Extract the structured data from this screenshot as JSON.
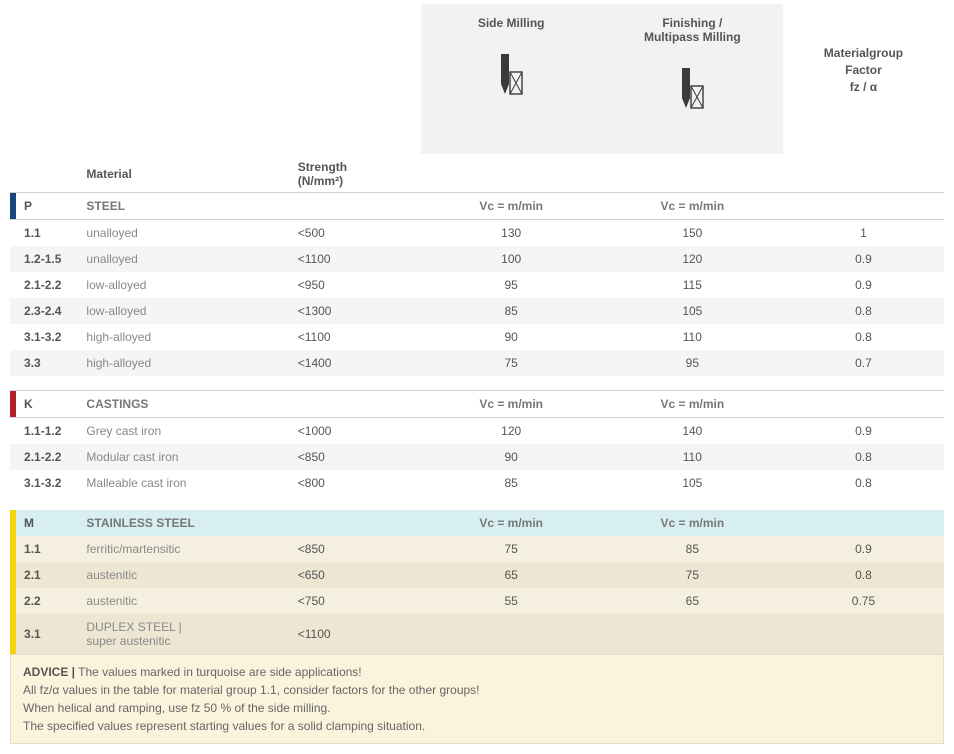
{
  "header": {
    "side_milling": "Side Milling",
    "finishing": "Finishing /\nMultipass Milling",
    "factor": "Materialgroup\nFactor\nfz / α",
    "material": "Material",
    "strength": "Strength\n(N/mm²)",
    "vc_label": "Vc = m/min"
  },
  "groups": [
    {
      "code": "P",
      "name": "STEEL",
      "class": "p",
      "rows": [
        {
          "code": "1.1",
          "material": "unalloyed",
          "strength": "<500",
          "side": "130",
          "finish": "150",
          "factor": "1"
        },
        {
          "code": "1.2-1.5",
          "material": "unalloyed",
          "strength": "<1100",
          "side": "100",
          "finish": "120",
          "factor": "0.9"
        },
        {
          "code": "2.1-2.2",
          "material": "low-alloyed",
          "strength": "<950",
          "side": "95",
          "finish": "115",
          "factor": "0.9"
        },
        {
          "code": "2.3-2.4",
          "material": "low-alloyed",
          "strength": "<1300",
          "side": "85",
          "finish": "105",
          "factor": "0.8"
        },
        {
          "code": "3.1-3.2",
          "material": "high-alloyed",
          "strength": "<1100",
          "side": "90",
          "finish": "110",
          "factor": "0.8"
        },
        {
          "code": "3.3",
          "material": "high-alloyed",
          "strength": "<1400",
          "side": "75",
          "finish": "95",
          "factor": "0.7"
        }
      ]
    },
    {
      "code": "K",
      "name": "CASTINGS",
      "class": "k",
      "rows": [
        {
          "code": "1.1-1.2",
          "material": "Grey cast iron",
          "strength": "<1000",
          "side": "120",
          "finish": "140",
          "factor": "0.9"
        },
        {
          "code": "2.1-2.2",
          "material": "Modular cast iron",
          "strength": "<850",
          "side": "90",
          "finish": "110",
          "factor": "0.8"
        },
        {
          "code": "3.1-3.2",
          "material": "Malleable cast iron",
          "strength": "<800",
          "side": "85",
          "finish": "105",
          "factor": "0.8"
        }
      ]
    },
    {
      "code": "M",
      "name": "STAINLESS STEEL",
      "class": "m",
      "rows": [
        {
          "code": "1.1",
          "material": "ferritic/martensitic",
          "strength": "<850",
          "side": "75",
          "finish": "85",
          "factor": "0.9"
        },
        {
          "code": "2.1",
          "material": "austenitic",
          "strength": "<650",
          "side": "65",
          "finish": "75",
          "factor": "0.8"
        },
        {
          "code": "2.2",
          "material": "austenitic",
          "strength": "<750",
          "side": "55",
          "finish": "65",
          "factor": "0.75"
        },
        {
          "code": "3.1",
          "material": "DUPLEX STEEL |\nsuper austenitic",
          "strength": "<1100",
          "side": "",
          "finish": "",
          "factor": ""
        }
      ]
    }
  ],
  "advice": {
    "lead": "ADVICE  |",
    "lines": [
      "The values marked in turquoise are side applications!",
      "All fz/α values in the table for material group 1.1, consider factors for the other groups!",
      "When helical and ramping, use fz 50 % of the side milling.",
      "The specified values represent starting values for a solid clamping situation."
    ]
  },
  "colors": {
    "p_bar": "#18457a",
    "k_bar": "#b3202c",
    "m_bar": "#f3d40c",
    "m_header_bg": "#d7eff1",
    "m_row_bg": "#f5efe0",
    "m_row_alt": "#ede6d3",
    "alt_bg": "#f5f5f5",
    "header_bg": "#f2f2f2",
    "advice_bg": "#fcf3dd"
  }
}
